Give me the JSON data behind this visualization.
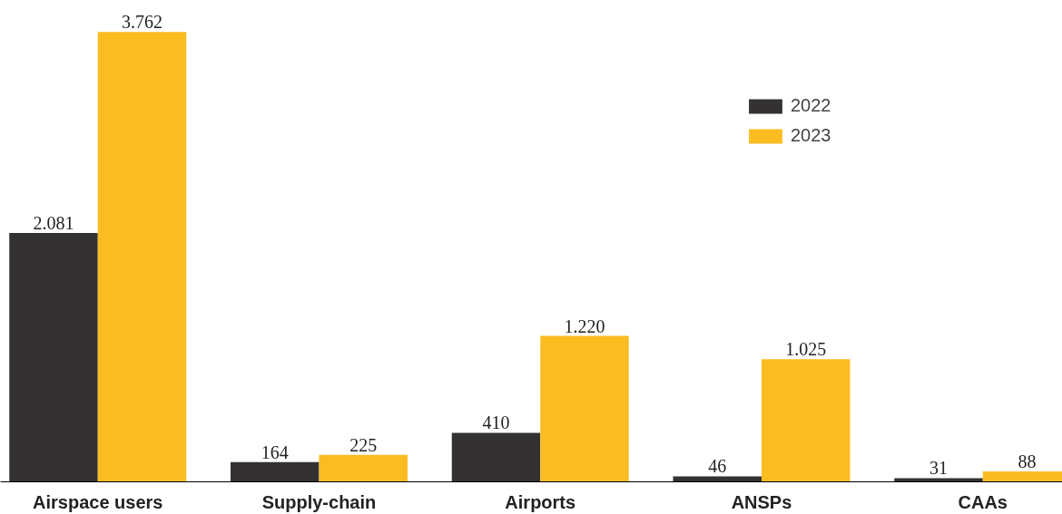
{
  "chart_data": {
    "type": "bar",
    "categories": [
      "Airspace users",
      "Supply-chain",
      "Airports",
      "ANSPs",
      "CAAs"
    ],
    "series": [
      {
        "name": "2022",
        "color": "#333132",
        "values": [
          2081,
          164,
          410,
          46,
          31
        ],
        "value_labels": [
          "2.081",
          "164",
          "410",
          "46",
          "31"
        ]
      },
      {
        "name": "2023",
        "color": "#fbbc21",
        "values": [
          3762,
          225,
          1220,
          1025,
          88
        ],
        "value_labels": [
          "3.762",
          "225",
          "1.220",
          "1.025",
          "88"
        ]
      }
    ],
    "legend": "top right",
    "grid": false
  }
}
